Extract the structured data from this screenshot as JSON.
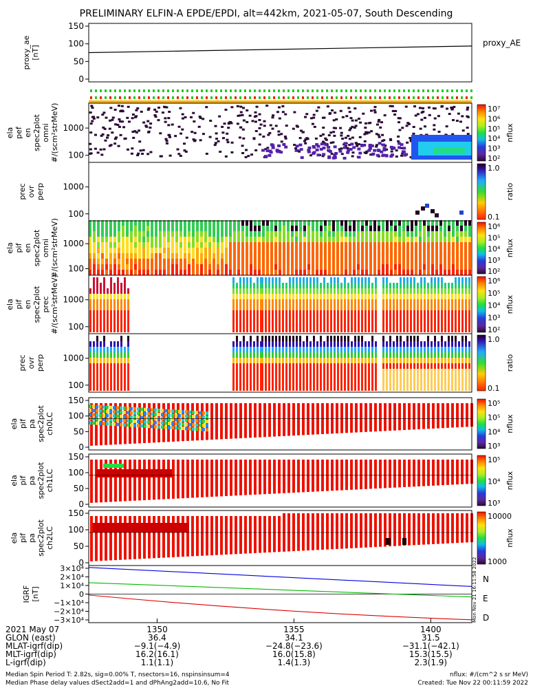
{
  "title": "PRELIMINARY ELFIN-A EPDE/EPDI, alt=442km, 2021-05-07, South Descending",
  "panels": [
    {
      "ylabel": [
        "proxy_ae",
        "[nT]"
      ],
      "ticks": [
        "150",
        "100",
        "50",
        "0"
      ],
      "side_label": "proxy_AE"
    },
    {
      "ylabel": [
        "ela",
        "pef",
        "en",
        "spec2plot",
        "omni",
        "#/(scm²strMeV)"
      ],
      "ticks": [
        "1000",
        "100"
      ],
      "cb_ticks": [
        "10⁷",
        "10⁶",
        "10⁵",
        "10⁴",
        "10³",
        "10²"
      ],
      "cb_title": "nflux"
    },
    {
      "ylabel": [
        "prec",
        "ovr",
        "perp"
      ],
      "ticks": [
        "1000",
        "100"
      ],
      "cb_ticks": [
        "1.0",
        "0.1"
      ],
      "cb_title": "ratio"
    },
    {
      "ylabel": [
        "ela",
        "pif",
        "en",
        "spec2plot",
        "omni",
        "#/(scm²strMeV)"
      ],
      "ticks": [
        "1000",
        "100"
      ],
      "cb_ticks": [
        "10⁶",
        "10⁵",
        "10⁴",
        "10³",
        "10²"
      ],
      "cb_title": "nflux"
    },
    {
      "ylabel": [
        "ela",
        "pif",
        "en",
        "spec2plot",
        "prec",
        "#/(scm²strMeV)"
      ],
      "ticks": [
        "1000",
        "100"
      ],
      "cb_ticks": [
        "10⁶",
        "10⁵",
        "10⁴",
        "10³",
        "10²"
      ],
      "cb_title": "nflux"
    },
    {
      "ylabel": [
        "prec",
        "ovr",
        "perp"
      ],
      "ticks": [
        "1000",
        "100"
      ],
      "cb_ticks": [
        "1.0",
        "0.1"
      ],
      "cb_title": "ratio"
    },
    {
      "ylabel": [
        "ela",
        "pif",
        "pa",
        "spec2plot",
        "ch0LC"
      ],
      "ticks": [
        "150",
        "100",
        "50",
        "0"
      ],
      "cb_ticks": [
        "10⁵",
        "10⁵",
        "10⁴",
        "10³"
      ],
      "cb_title": "nflux"
    },
    {
      "ylabel": [
        "ela",
        "pif",
        "pa",
        "spec2plot",
        "ch1LC"
      ],
      "ticks": [
        "150",
        "100",
        "50",
        "0"
      ],
      "cb_ticks": [
        "10⁵",
        "10⁴",
        "10³"
      ],
      "cb_title": "nflux"
    },
    {
      "ylabel": [
        "ela",
        "pif",
        "pa",
        "spec2plot",
        "ch2LC"
      ],
      "ticks": [
        "150",
        "100",
        "50",
        "0"
      ],
      "cb_ticks": [
        "10000",
        "1000"
      ],
      "cb_title": "nflux"
    },
    {
      "ylabel": [
        "IGRF",
        "[nT]"
      ],
      "ticks": [
        "3×10⁴",
        "2×10⁴",
        "1×10⁴",
        "0",
        "−1×10⁴",
        "−2×10⁴",
        "−3×10⁴"
      ],
      "legend": [
        "N",
        "E",
        "D"
      ]
    }
  ],
  "created_vertical": "Mon Nov 21 16:11:58 2022",
  "footer_rows": [
    {
      "label": "2021 May 07",
      "vals": [
        "1350",
        "1355",
        "1400"
      ]
    },
    {
      "label": "GLON (east)",
      "vals": [
        "36.4",
        "34.1",
        "31.5"
      ]
    },
    {
      "label": "MLAT-igrf(dip)",
      "vals": [
        "−9.1(−4.9)",
        "−24.8(−23.6)",
        "−31.1(−42.1)"
      ]
    },
    {
      "label": "MLT-igrf(dip)",
      "vals": [
        "16.2(16.1)",
        "16.0(15.8)",
        "15.3(15.5)"
      ]
    },
    {
      "label": "L-igrf(dip)",
      "vals": [
        "1.1(1.1)",
        "1.4(1.3)",
        "2.3(1.9)"
      ]
    }
  ],
  "footnote1": "Median Spin Period T: 2.82s, sig=0.00% T, nsectors=16, nspinsinsum=4",
  "footnote2": "Median Phase delay values dSect2add=1 and dPhAng2add=10.6, No Fit",
  "footnote_right1": "nflux: #/(cm^2 s sr MeV)",
  "footnote_right2": "Created: Tue Nov 22 00:11:59 2022",
  "colors": {
    "N": "#0000dd",
    "E": "#00bb00",
    "D": "#dd0000",
    "proxy": "#000000"
  },
  "chart_data": {
    "type": "heatmap",
    "title": "PRELIMINARY ELFIN-A EPDE/EPDI, alt=442km, 2021-05-07, South Descending",
    "x_ticks": [
      "1350",
      "1355",
      "1400"
    ],
    "proxy_ae": {
      "x": [
        "1347.5",
        "1401.5"
      ],
      "y": [
        75,
        92
      ],
      "ylim": [
        0,
        150
      ]
    },
    "igrf": {
      "ylim": [
        -30000,
        30000
      ],
      "series": [
        {
          "name": "N",
          "x": [
            "1347.5",
            "1401.5"
          ],
          "y": [
            28000,
            8000
          ]
        },
        {
          "name": "E",
          "x": [
            "1347.5",
            "1401.5"
          ],
          "y": [
            12000,
            -3000
          ]
        },
        {
          "name": "D",
          "x": [
            "1347.5",
            "1401.5"
          ],
          "y": [
            -1000,
            -27000
          ]
        }
      ]
    }
  }
}
